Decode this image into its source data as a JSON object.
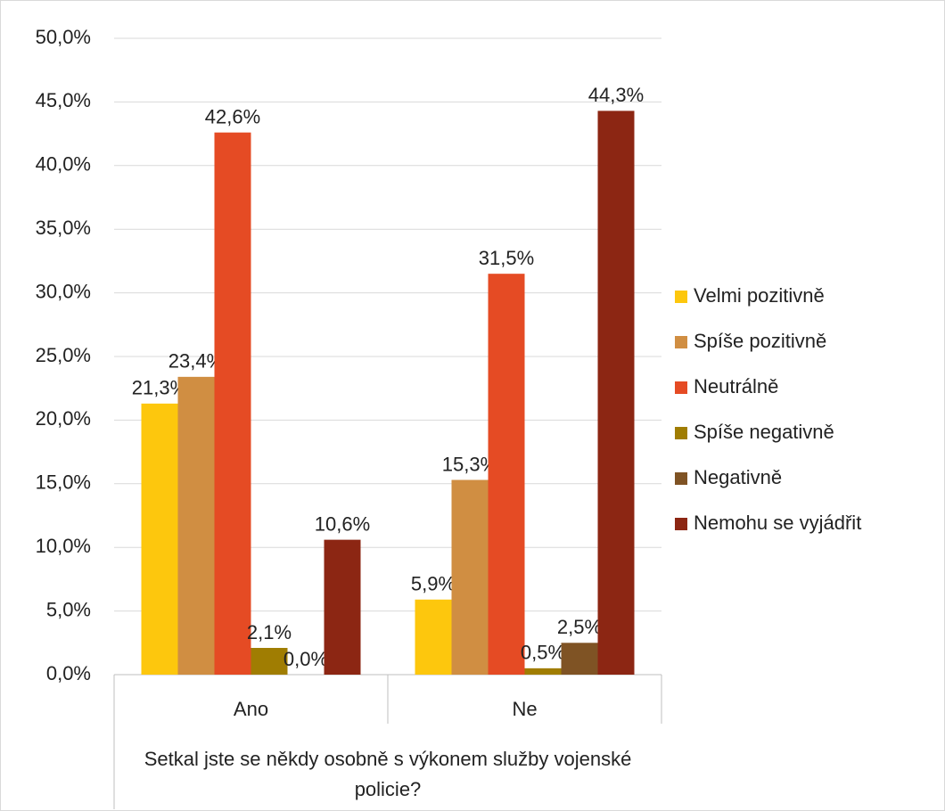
{
  "chart_data": {
    "type": "bar",
    "x_label": "Setkal jste se někdy osobně s výkonem služby vojenské policie?",
    "categories": [
      "Ano",
      "Ne"
    ],
    "series": [
      {
        "name": "Velmi pozitivně",
        "color": "#fdc70d",
        "values": [
          21.3,
          5.9
        ],
        "value_labels": [
          "21,3%",
          "5,9%"
        ]
      },
      {
        "name": "Spíše pozitivně",
        "color": "#d08e42",
        "values": [
          23.4,
          15.3
        ],
        "value_labels": [
          "23,4%",
          "15,3%"
        ]
      },
      {
        "name": "Neutrálně",
        "color": "#e54b24",
        "values": [
          42.6,
          31.5
        ],
        "value_labels": [
          "42,6%",
          "31,5%"
        ]
      },
      {
        "name": "Spíše negativně",
        "color": "#a07d02",
        "values": [
          2.1,
          0.5
        ],
        "value_labels": [
          "2,1%",
          "0,5%"
        ]
      },
      {
        "name": "Negativně",
        "color": "#7f5324",
        "values": [
          0.0,
          2.5
        ],
        "value_labels": [
          "0,0%",
          "2,5%"
        ]
      },
      {
        "name": "Nemohu se vyjádřit",
        "color": "#8c2613",
        "values": [
          10.6,
          44.3
        ],
        "value_labels": [
          "10,6%",
          "44,3%"
        ]
      }
    ],
    "ylim": [
      0,
      50
    ],
    "yticks": [
      {
        "value": 0,
        "label": "0,0%"
      },
      {
        "value": 5,
        "label": "5,0%"
      },
      {
        "value": 10,
        "label": "10,0%"
      },
      {
        "value": 15,
        "label": "15,0%"
      },
      {
        "value": 20,
        "label": "20,0%"
      },
      {
        "value": 25,
        "label": "25,0%"
      },
      {
        "value": 30,
        "label": "30,0%"
      },
      {
        "value": 35,
        "label": "35,0%"
      },
      {
        "value": 40,
        "label": "40,0%"
      },
      {
        "value": 45,
        "label": "45,0%"
      },
      {
        "value": 50,
        "label": "50,0%"
      }
    ],
    "grid": true,
    "legend": "right"
  }
}
